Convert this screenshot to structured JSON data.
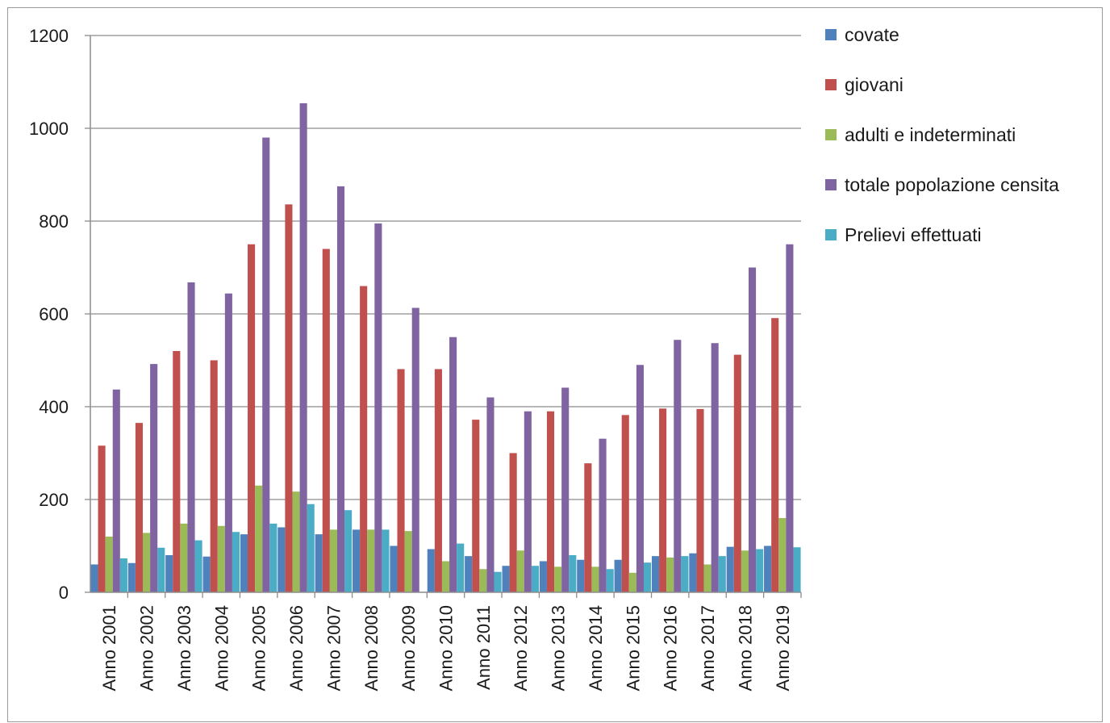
{
  "chart_data": {
    "type": "bar",
    "title": "",
    "xlabel": "",
    "ylabel": "",
    "ylim": [
      0,
      1200
    ],
    "yticks": [
      "0",
      "200",
      "400",
      "600",
      "800",
      "1000",
      "1200"
    ],
    "grid": true,
    "legend_position": "right",
    "categories": [
      "Anno 2001",
      "Anno 2002",
      "Anno 2003",
      "Anno 2004",
      "Anno 2005",
      "Anno 2006",
      "Anno 2007",
      "Anno 2008",
      "Anno 2009",
      "Anno 2010",
      "Anno 2011",
      "Anno 2012",
      "Anno 2013",
      "Anno 2014",
      "Anno 2015",
      "Anno 2016",
      "Anno 2017",
      "Anno 2018",
      "Anno 2019"
    ],
    "series": [
      {
        "name": "covate",
        "color": "#4f81bd",
        "values": [
          60,
          63,
          80,
          77,
          125,
          140,
          125,
          135,
          100,
          93,
          78,
          57,
          67,
          70,
          70,
          78,
          84,
          98,
          100
        ]
      },
      {
        "name": "giovani",
        "color": "#c0504d",
        "values": [
          316,
          365,
          520,
          500,
          750,
          836,
          740,
          660,
          481,
          481,
          372,
          300,
          390,
          278,
          382,
          396,
          395,
          512,
          591
        ]
      },
      {
        "name": "adulti e indeterminati",
        "color": "#9bbb59",
        "values": [
          120,
          128,
          148,
          143,
          230,
          217,
          135,
          135,
          132,
          67,
          50,
          90,
          55,
          55,
          42,
          75,
          60,
          90,
          160
        ]
      },
      {
        "name": "totale popolazione censita",
        "color": "#8064a2",
        "values": [
          437,
          492,
          668,
          644,
          980,
          1054,
          875,
          795,
          613,
          550,
          420,
          390,
          441,
          331,
          490,
          544,
          537,
          700,
          750
        ]
      },
      {
        "name": "Prelievi effettuati",
        "color": "#4bacc6",
        "values": [
          73,
          96,
          112,
          130,
          148,
          190,
          177,
          135,
          0,
          105,
          44,
          57,
          80,
          50,
          64,
          78,
          78,
          93,
          97
        ]
      }
    ]
  }
}
